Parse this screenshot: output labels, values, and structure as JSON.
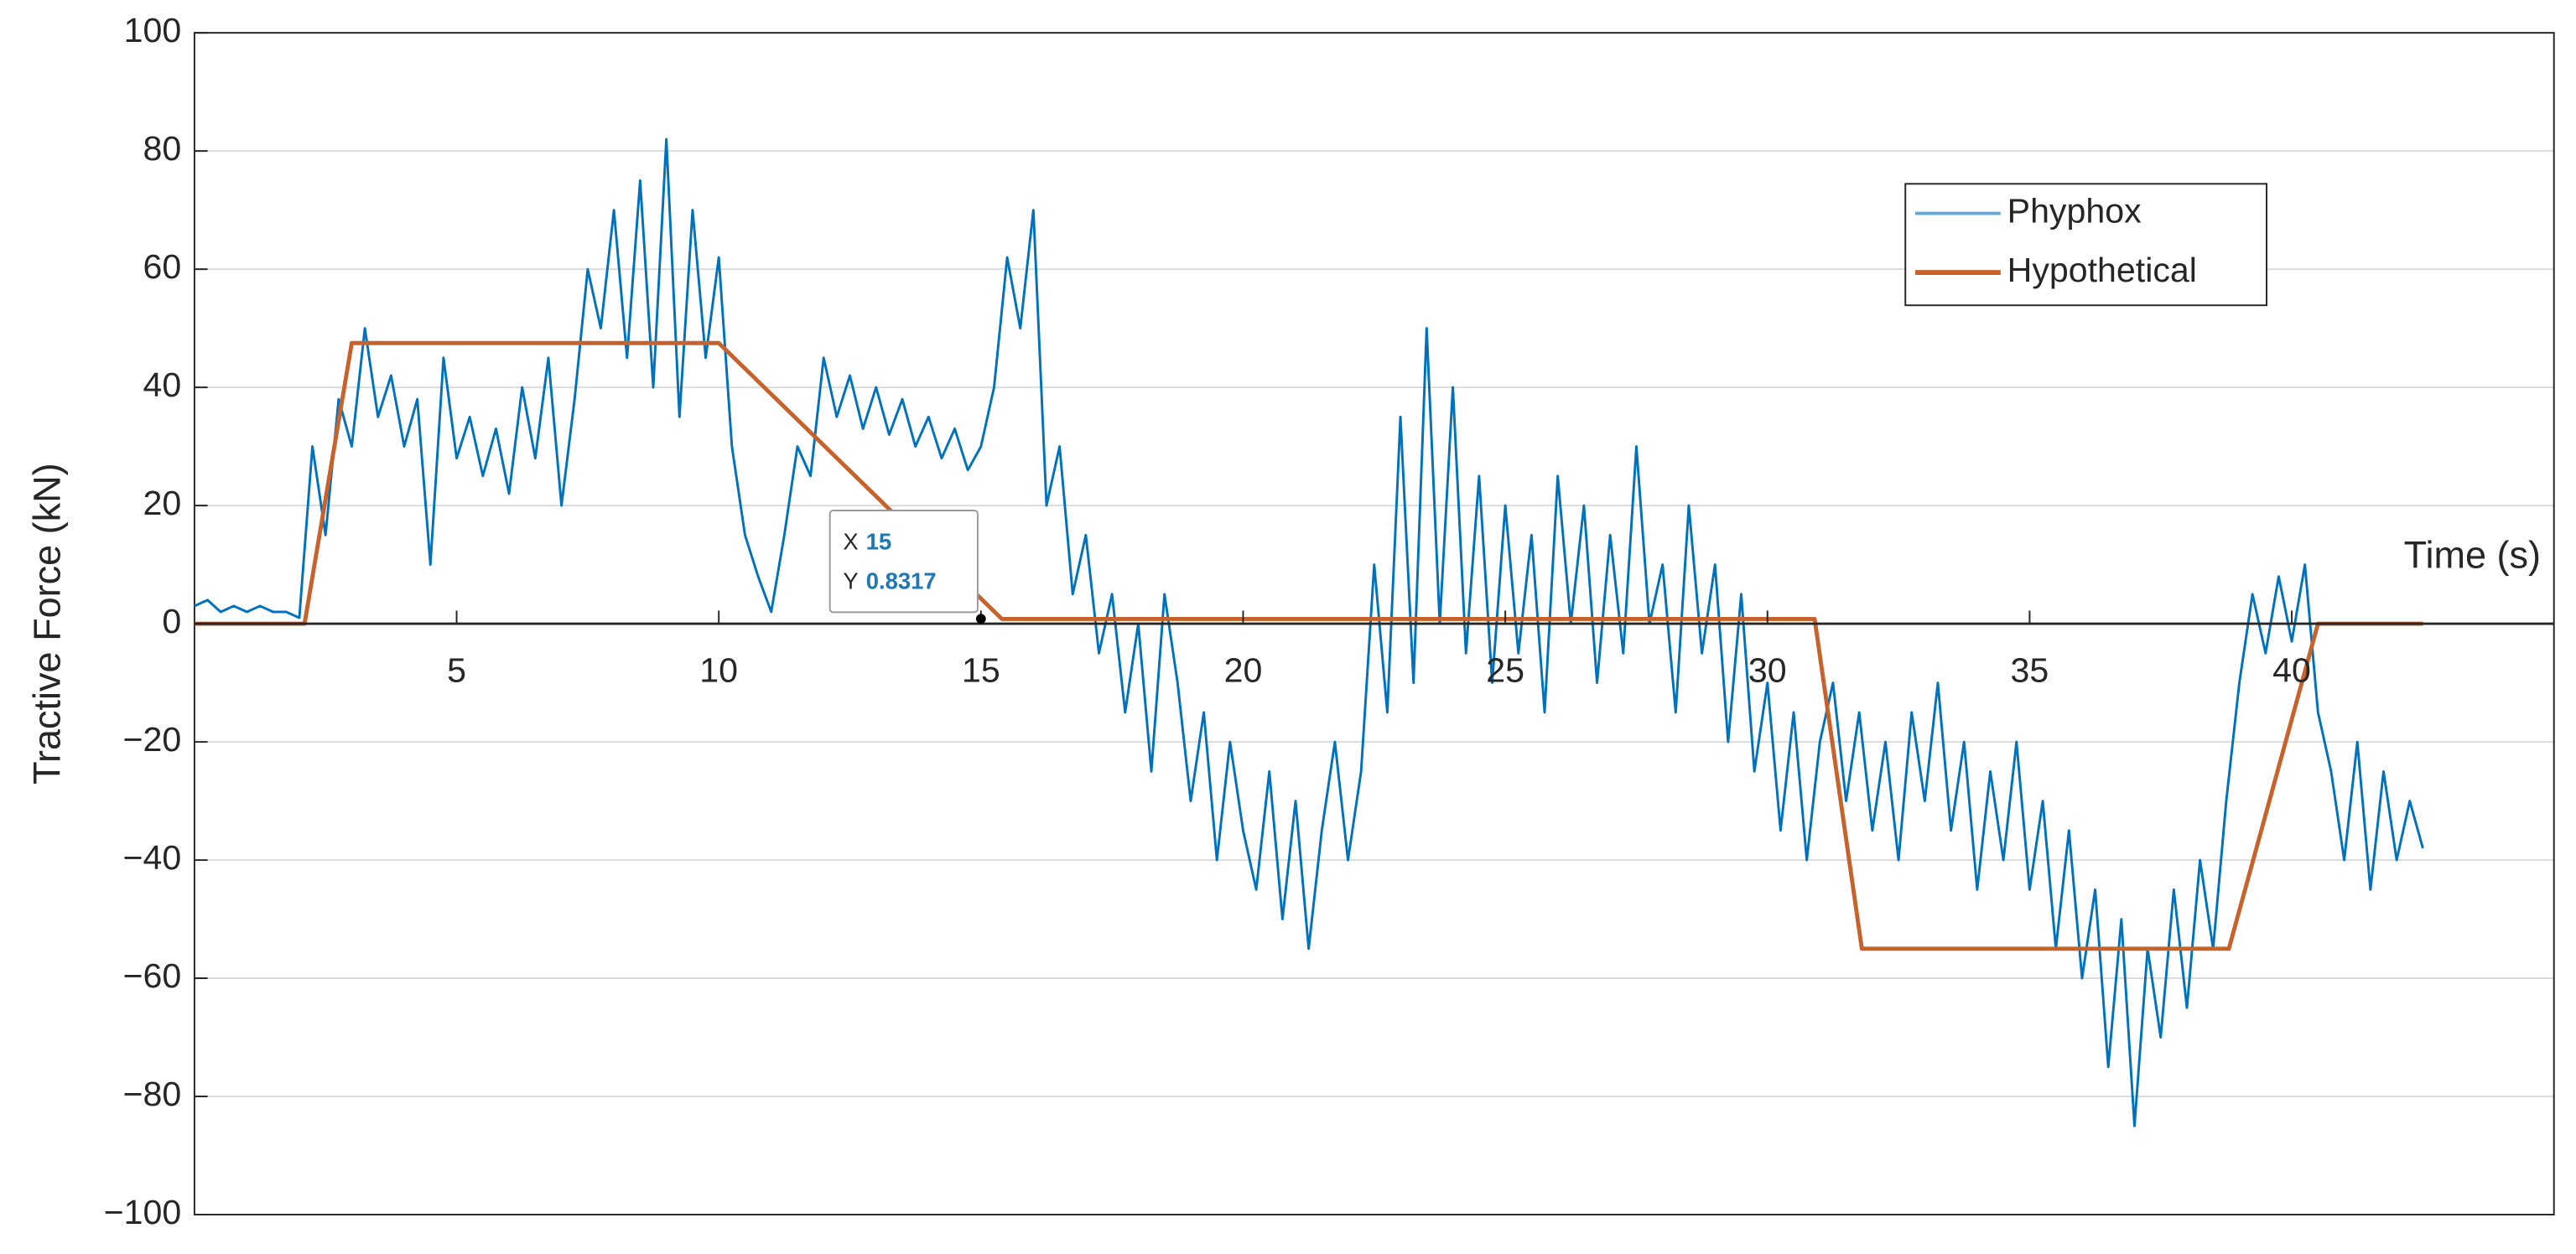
{
  "chart_data": {
    "type": "line",
    "ylabel": "Tractive Force (kN)",
    "xlabel": "Time (s)",
    "xlim": [
      0,
      45
    ],
    "xticks": [
      5,
      10,
      15,
      20,
      25,
      30,
      35,
      40
    ],
    "ylim": [
      -100,
      100
    ],
    "yticks": [
      {
        "value": -100,
        "label": "−100"
      },
      {
        "value": -80,
        "label": "−80"
      },
      {
        "value": -60,
        "label": "−60"
      },
      {
        "value": -40,
        "label": "−40"
      },
      {
        "value": -20,
        "label": "−20"
      },
      0,
      20,
      40,
      60,
      80,
      100
    ],
    "grid": true,
    "legend": "upper-right",
    "datatip": {
      "x_name": "X",
      "x": 15,
      "y_name": "Y",
      "y": 0.8317
    },
    "series": [
      {
        "name": "Phyphox",
        "color": "#0072bd",
        "x": [
          0,
          0.25,
          0.5,
          0.75,
          1,
          1.25,
          1.5,
          1.75,
          2,
          2.25,
          2.5,
          2.75,
          3,
          3.25,
          3.5,
          3.75,
          4,
          4.25,
          4.5,
          4.75,
          5,
          5.25,
          5.5,
          5.75,
          6,
          6.25,
          6.5,
          6.75,
          7,
          7.25,
          7.5,
          7.75,
          8,
          8.25,
          8.5,
          8.75,
          9,
          9.25,
          9.5,
          9.75,
          10,
          10.25,
          10.5,
          10.75,
          11,
          11.25,
          11.5,
          11.75,
          12,
          12.25,
          12.5,
          12.75,
          13,
          13.25,
          13.5,
          13.75,
          14,
          14.25,
          14.5,
          14.75,
          15,
          15.25,
          15.5,
          15.75,
          16,
          16.25,
          16.5,
          16.75,
          17,
          17.25,
          17.5,
          17.75,
          18,
          18.25,
          18.5,
          18.75,
          19,
          19.25,
          19.5,
          19.75,
          20,
          20.25,
          20.5,
          20.75,
          21,
          21.25,
          21.5,
          21.75,
          22,
          22.25,
          22.5,
          22.75,
          23,
          23.25,
          23.5,
          23.75,
          24,
          24.25,
          24.5,
          24.75,
          25,
          25.25,
          25.5,
          25.75,
          26,
          26.25,
          26.5,
          26.75,
          27,
          27.25,
          27.5,
          27.75,
          28,
          28.25,
          28.5,
          28.75,
          29,
          29.25,
          29.5,
          29.75,
          30,
          30.25,
          30.5,
          30.75,
          31,
          31.25,
          31.5,
          31.75,
          32,
          32.25,
          32.5,
          32.75,
          33,
          33.25,
          33.5,
          33.75,
          34,
          34.25,
          34.5,
          34.75,
          35,
          35.25,
          35.5,
          35.75,
          36,
          36.25,
          36.5,
          36.75,
          37,
          37.25,
          37.5,
          37.75,
          38,
          38.25,
          38.5,
          38.75,
          39,
          39.25,
          39.5,
          39.75,
          40,
          40.25,
          40.5,
          40.75,
          41,
          41.25,
          41.5,
          41.75,
          42,
          42.25,
          42.5
        ],
        "values": [
          3,
          4,
          2,
          3,
          2,
          3,
          2,
          2,
          1,
          30,
          15,
          38,
          30,
          50,
          35,
          42,
          30,
          38,
          10,
          45,
          28,
          35,
          25,
          33,
          22,
          40,
          28,
          45,
          20,
          38,
          60,
          50,
          70,
          45,
          75,
          40,
          82,
          35,
          70,
          45,
          62,
          30,
          15,
          8,
          2,
          15,
          30,
          25,
          45,
          35,
          42,
          33,
          40,
          32,
          38,
          30,
          35,
          28,
          33,
          26,
          30,
          40,
          62,
          50,
          70,
          20,
          30,
          5,
          15,
          -5,
          5,
          -15,
          0,
          -25,
          5,
          -10,
          -30,
          -15,
          -40,
          -20,
          -35,
          -45,
          -25,
          -50,
          -30,
          -55,
          -35,
          -20,
          -40,
          -25,
          10,
          -15,
          35,
          -10,
          50,
          0,
          40,
          -5,
          25,
          -10,
          20,
          -5,
          15,
          -15,
          25,
          0,
          20,
          -10,
          15,
          -5,
          30,
          0,
          10,
          -15,
          20,
          -5,
          10,
          -20,
          5,
          -25,
          -10,
          -35,
          -15,
          -40,
          -20,
          -10,
          -30,
          -15,
          -35,
          -20,
          -40,
          -15,
          -30,
          -10,
          -35,
          -20,
          -45,
          -25,
          -40,
          -20,
          -45,
          -30,
          -55,
          -35,
          -60,
          -45,
          -75,
          -50,
          -85,
          -55,
          -70,
          -45,
          -65,
          -40,
          -55,
          -30,
          -10,
          5,
          -5,
          8,
          -3,
          10,
          -15,
          -25,
          -40,
          -20,
          -45,
          -25,
          -40,
          -30,
          -38
        ]
      },
      {
        "name": "Hypothetical",
        "color": "#c8622c",
        "x": [
          0,
          2.1,
          3,
          10,
          15.4,
          30.9,
          31.8,
          38.8,
          40.5,
          42.5
        ],
        "values": [
          0,
          0,
          47.5,
          47.5,
          0.8,
          0.8,
          -55,
          -55,
          0,
          0
        ]
      }
    ]
  }
}
